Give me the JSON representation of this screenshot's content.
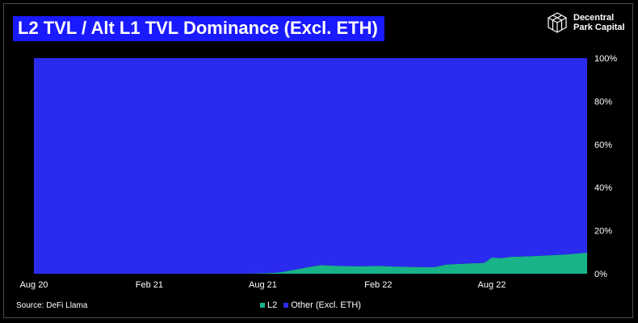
{
  "title": "L2 TVL / Alt L1 TVL Dominance (Excl. ETH)",
  "brand": {
    "line1": "Decentral",
    "line2": "Park Capital",
    "icon": "cube-logo-icon"
  },
  "source": "Source: DeFi Llama",
  "colors": {
    "l2": "#19b38a",
    "other": "#2b2bf0",
    "background": "#000000"
  },
  "chart_data": {
    "type": "area",
    "stacked": true,
    "normalized": true,
    "title": "L2 TVL / Alt L1 TVL Dominance (Excl. ETH)",
    "xlabel": "",
    "ylabel": "",
    "x_ticks": [
      "Aug 20",
      "Feb 21",
      "Aug 21",
      "Feb 22",
      "Aug 22"
    ],
    "y_ticks": [
      "0%",
      "20%",
      "40%",
      "60%",
      "80%",
      "100%"
    ],
    "ylim": [
      0,
      100
    ],
    "y_axis_side": "right",
    "grid": false,
    "legend_position": "bottom-center",
    "x": [
      "2020-08-01",
      "2020-09-01",
      "2020-10-01",
      "2020-11-01",
      "2020-12-01",
      "2021-01-01",
      "2021-02-01",
      "2021-03-01",
      "2021-04-01",
      "2021-05-01",
      "2021-06-01",
      "2021-07-01",
      "2021-08-01",
      "2021-08-20",
      "2021-09-01",
      "2021-09-15",
      "2021-10-01",
      "2021-10-15",
      "2021-11-01",
      "2021-12-01",
      "2022-01-01",
      "2022-02-01",
      "2022-03-01",
      "2022-04-01",
      "2022-05-01",
      "2022-05-20",
      "2022-06-01",
      "2022-07-01",
      "2022-07-20",
      "2022-08-01",
      "2022-08-15",
      "2022-09-01",
      "2022-10-01",
      "2022-11-01",
      "2022-12-01",
      "2022-12-31"
    ],
    "series": [
      {
        "name": "L2",
        "values": [
          0,
          0,
          0,
          0,
          0,
          0,
          0,
          0,
          0,
          0,
          0,
          0,
          0.2,
          0.4,
          0.8,
          1.6,
          2.4,
          3.2,
          4.0,
          3.6,
          3.4,
          3.6,
          3.3,
          3.1,
          3.0,
          4.2,
          4.4,
          4.8,
          5.0,
          7.5,
          7.2,
          7.8,
          8.1,
          8.5,
          9.0,
          9.8
        ]
      },
      {
        "name": "Other (Excl. ETH)",
        "values": [
          100,
          100,
          100,
          100,
          100,
          100,
          100,
          100,
          100,
          100,
          100,
          100,
          99.8,
          99.6,
          99.2,
          98.4,
          97.6,
          96.8,
          96.0,
          96.4,
          96.6,
          96.4,
          96.7,
          96.9,
          97.0,
          95.8,
          95.6,
          95.2,
          95.0,
          92.5,
          92.8,
          92.2,
          91.9,
          91.5,
          91.0,
          90.2
        ]
      }
    ]
  }
}
